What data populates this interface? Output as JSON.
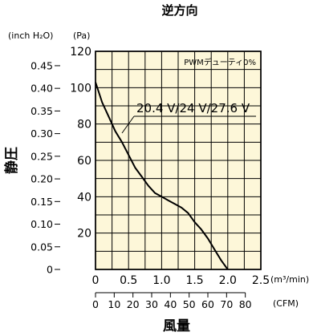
{
  "chart_data": {
    "type": "line",
    "title": "逆方向",
    "annotation": "PWMデューティ0%",
    "series": [
      {
        "name": "20.4 V/24 V/27.6 V",
        "points": [
          [
            0.0,
            103
          ],
          [
            0.1,
            92
          ],
          [
            0.2,
            84
          ],
          [
            0.3,
            76
          ],
          [
            0.4,
            70
          ],
          [
            0.5,
            63
          ],
          [
            0.6,
            56
          ],
          [
            0.7,
            51
          ],
          [
            0.8,
            46
          ],
          [
            0.9,
            42
          ],
          [
            1.0,
            40
          ],
          [
            1.1,
            38
          ],
          [
            1.2,
            36
          ],
          [
            1.3,
            34
          ],
          [
            1.4,
            31
          ],
          [
            1.5,
            26
          ],
          [
            1.6,
            22
          ],
          [
            1.7,
            17
          ],
          [
            1.8,
            11
          ],
          [
            1.9,
            5
          ],
          [
            2.0,
            0
          ]
        ]
      }
    ],
    "x_axis": {
      "label": "風量",
      "unit": "(m³/min)",
      "range": [
        0,
        2.5
      ],
      "tick_values": [
        0,
        0.5,
        1.0,
        1.5,
        2.0,
        2.5
      ],
      "tick_labels": [
        "0",
        "0.5",
        "1.0",
        "1.5",
        "2.0",
        "2.5"
      ]
    },
    "x2_axis": {
      "unit": "(CFM)",
      "tick_values": [
        0,
        10,
        20,
        30,
        40,
        50,
        60,
        70,
        80
      ],
      "tick_labels": [
        "0",
        "10",
        "20",
        "30",
        "40",
        "50",
        "60",
        "70",
        "80"
      ]
    },
    "y_axis": {
      "label": "静圧",
      "unit": "(Pa)",
      "range": [
        0,
        120
      ],
      "tick_values": [
        20,
        40,
        60,
        80,
        100,
        120
      ],
      "tick_labels": [
        "20",
        "40",
        "60",
        "80",
        "100",
        "120"
      ]
    },
    "y2_axis": {
      "unit": "(inch H₂O)",
      "tick_values": [
        0,
        0.05,
        0.1,
        0.15,
        0.2,
        0.25,
        0.3,
        0.35,
        0.4,
        0.45
      ],
      "tick_labels": [
        "0",
        "0.05",
        "0.10",
        "0.15",
        "0.20",
        "0.25",
        "0.30",
        "0.35",
        "0.40",
        "0.45"
      ]
    },
    "grid": true,
    "background_color": "#fdf7d9",
    "line_color": "#000000"
  }
}
